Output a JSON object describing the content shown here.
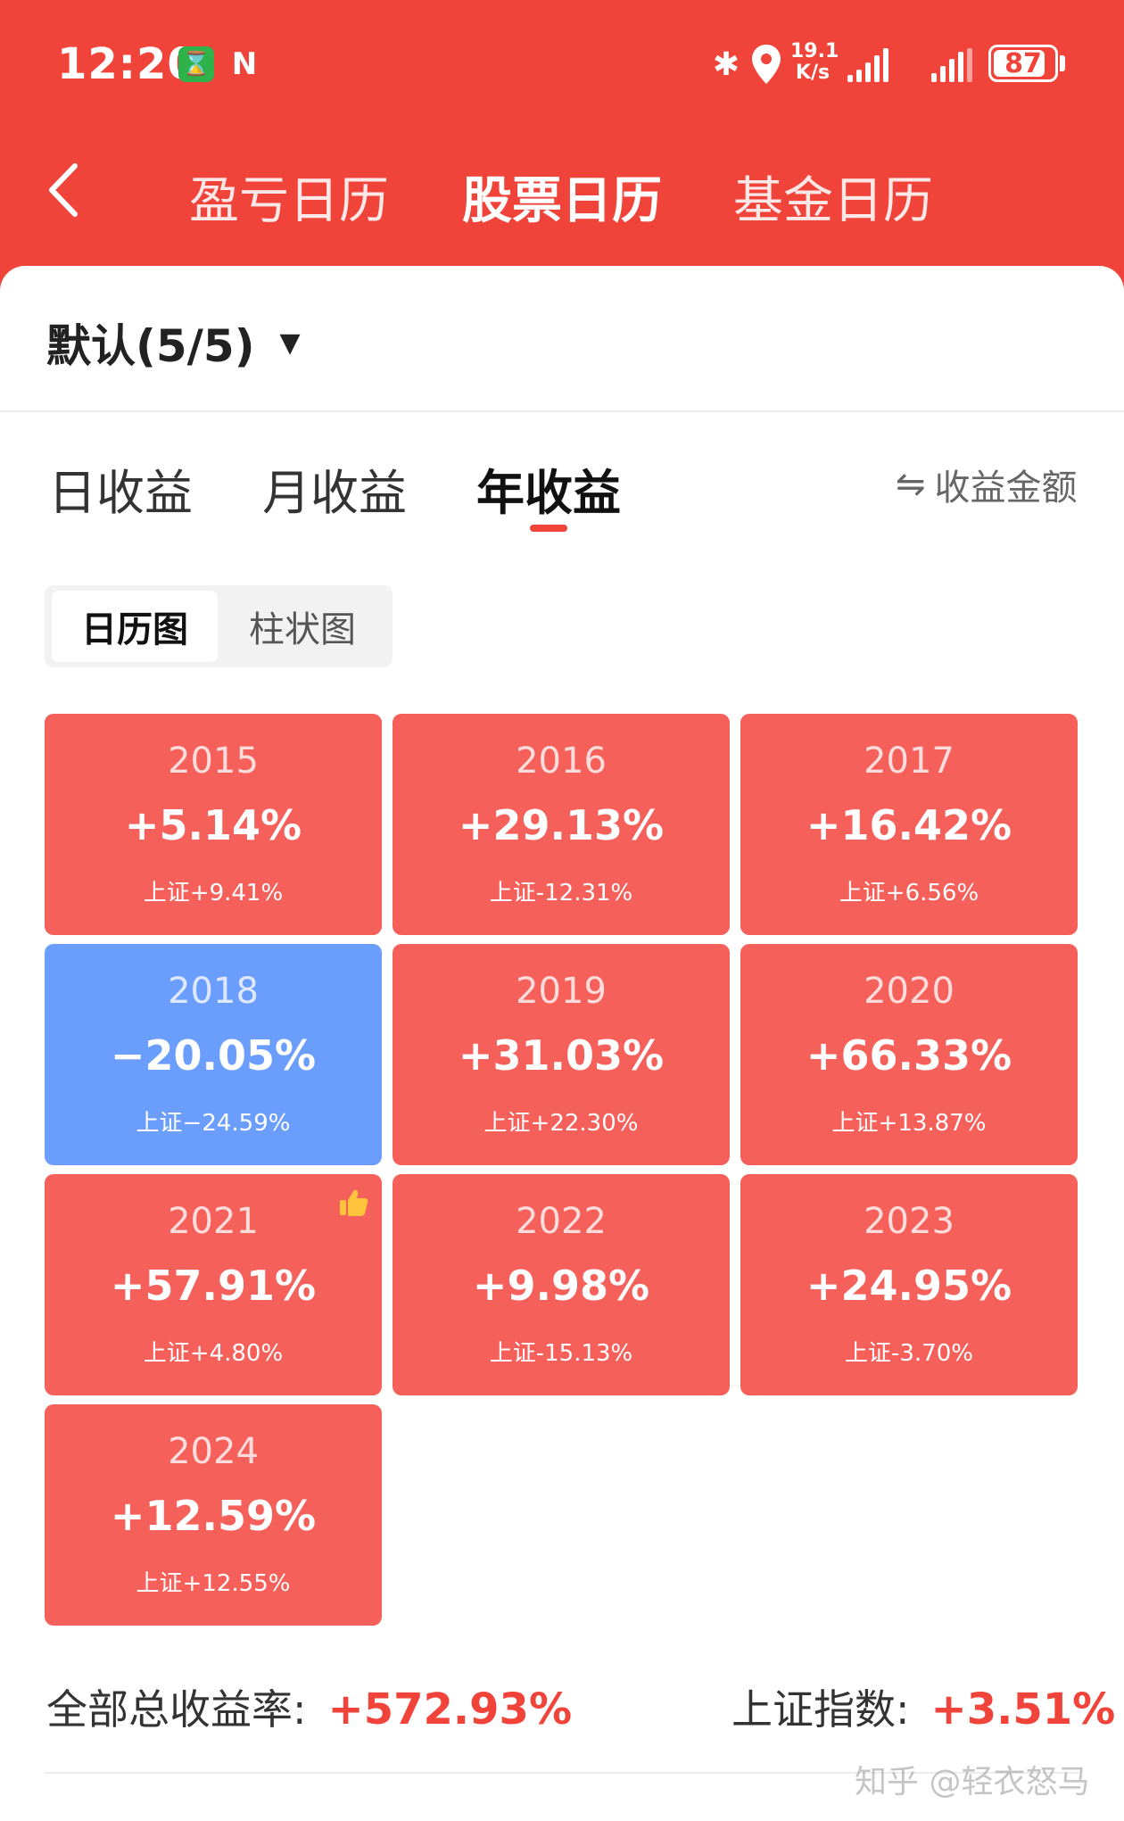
{
  "status_bar": {
    "time": "12:20",
    "net_speed_value": "19.1",
    "net_speed_unit": "K/s",
    "battery": "87",
    "icons": [
      "hourglass-icon",
      "nfc-icon",
      "bluetooth-icon",
      "location-icon",
      "signal-icon",
      "signal-icon",
      "battery-icon"
    ]
  },
  "nav": {
    "back_icon": "chevron-left-icon",
    "tabs": [
      {
        "label": "盈亏日历",
        "active": false
      },
      {
        "label": "股票日历",
        "active": true
      },
      {
        "label": "基金日历",
        "active": false
      }
    ]
  },
  "group_selector": {
    "label": "默认(5/5)",
    "caret": "▼"
  },
  "period_tabs": [
    {
      "label": "日收益",
      "active": false
    },
    {
      "label": "月收益",
      "active": false
    },
    {
      "label": "年收益",
      "active": true
    }
  ],
  "toggle": {
    "icon": "⇋",
    "label": "收益金额"
  },
  "view_switch": {
    "calendar": "日历图",
    "bar": "柱状图",
    "active": "calendar"
  },
  "years": [
    {
      "year": "2015",
      "return": "+5.14%",
      "index": "上证+9.41%",
      "status": "up"
    },
    {
      "year": "2016",
      "return": "+29.13%",
      "index": "上证-12.31%",
      "status": "up"
    },
    {
      "year": "2017",
      "return": "+16.42%",
      "index": "上证+6.56%",
      "status": "up"
    },
    {
      "year": "2018",
      "return": "−20.05%",
      "index": "上证−24.59%",
      "status": "down"
    },
    {
      "year": "2019",
      "return": "+31.03%",
      "index": "上证+22.30%",
      "status": "up"
    },
    {
      "year": "2020",
      "return": "+66.33%",
      "index": "上证+13.87%",
      "status": "up"
    },
    {
      "year": "2021",
      "return": "+57.91%",
      "index": "上证+4.80%",
      "status": "up",
      "badge": "thumbs-up-icon"
    },
    {
      "year": "2022",
      "return": "+9.98%",
      "index": "上证-15.13%",
      "status": "up"
    },
    {
      "year": "2023",
      "return": "+24.95%",
      "index": "上证-3.70%",
      "status": "up"
    },
    {
      "year": "2024",
      "return": "+12.59%",
      "index": "上证+12.55%",
      "status": "up"
    }
  ],
  "colors": {
    "up": "#f5605a",
    "down": "#6a9dfc",
    "accent": "#f0433a"
  },
  "summary": {
    "total_label": "全部总收益率:",
    "total_value": "+572.93%",
    "index_label": "上证指数:",
    "index_value": "+3.51%"
  },
  "watermark": "知乎 @轻衣怒马"
}
